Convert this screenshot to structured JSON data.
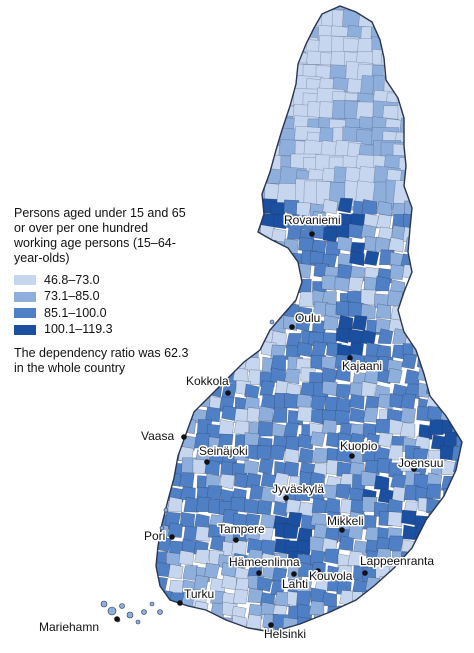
{
  "legend": {
    "title": "Persons aged under 15 and 65 or over per one hundred working age persons (15–64-year-olds)",
    "classes": [
      {
        "label": "46.8–73.0",
        "color": "#c6d6ee"
      },
      {
        "label": "73.1–85.0",
        "color": "#8eaedb"
      },
      {
        "label": "85.1–100.0",
        "color": "#4f7fc4"
      },
      {
        "label": "100.1–119.3",
        "color": "#1b4fa0"
      }
    ],
    "note": "The dependency ratio was 62.3 in the whole country"
  },
  "colors": {
    "boundary": "#2a3550",
    "background": "#ffffff"
  },
  "cities": [
    {
      "name": "Rovaniemi"
    },
    {
      "name": "Oulu"
    },
    {
      "name": "Kajaani"
    },
    {
      "name": "Kokkola"
    },
    {
      "name": "Vaasa"
    },
    {
      "name": "Seinäjoki"
    },
    {
      "name": "Kuopio"
    },
    {
      "name": "Joensuu"
    },
    {
      "name": "Jyväskylä"
    },
    {
      "name": "Mikkeli"
    },
    {
      "name": "Pori"
    },
    {
      "name": "Tampere"
    },
    {
      "name": "Hämeenlinna"
    },
    {
      "name": "Lahti"
    },
    {
      "name": "Kouvola"
    },
    {
      "name": "Lappeenranta"
    },
    {
      "name": "Turku"
    },
    {
      "name": "Helsinki"
    },
    {
      "name": "Mariehamn"
    }
  ]
}
